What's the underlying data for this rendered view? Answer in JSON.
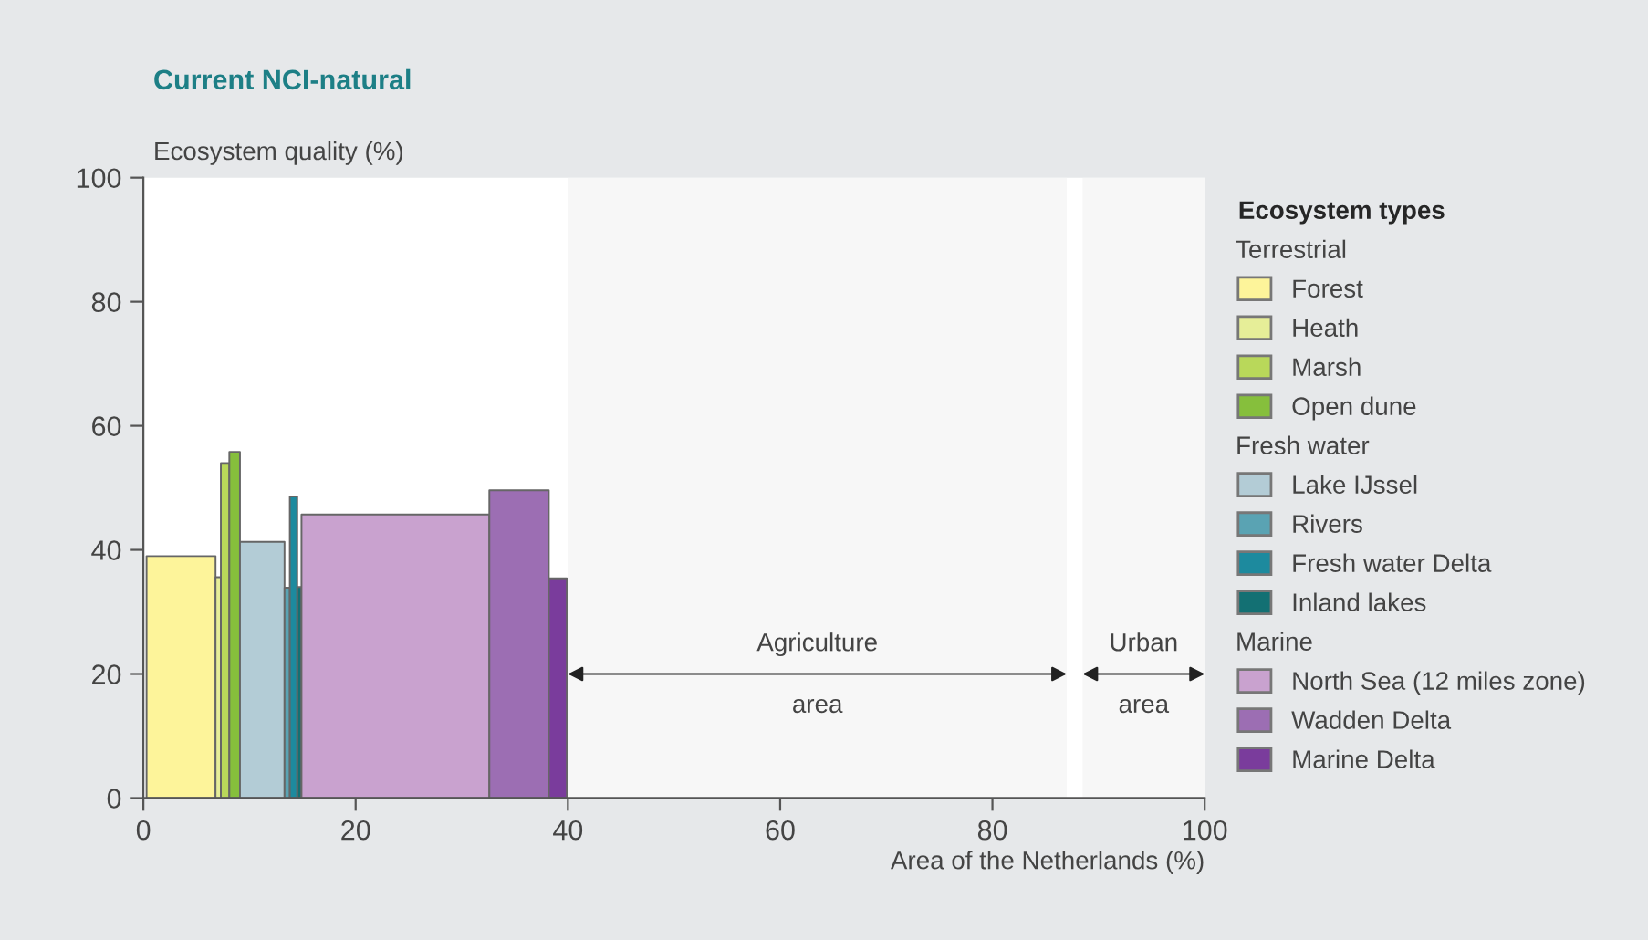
{
  "chart_data": {
    "type": "area",
    "title": "Current NCI-natural",
    "xlabel": "Area of the Netherlands (%)",
    "ylabel": "Ecosystem quality (%)",
    "legend_title": "Ecosystem types",
    "annotations": [
      "Terrestrial",
      "Fresh water",
      "Marine"
    ],
    "xlim": [
      0,
      100
    ],
    "xticks": [
      0,
      20,
      40,
      60,
      80,
      100
    ],
    "ylim": [
      0,
      100
    ],
    "yticks": [
      0,
      20,
      40,
      60,
      80,
      100
    ],
    "grid": false,
    "legend": "right",
    "bands": [
      {
        "axis": "x",
        "from": 40,
        "to": 87,
        "label": "Agriculture area"
      },
      {
        "axis": "x",
        "from": 88.5,
        "to": 100,
        "label": "Urban area"
      }
    ],
    "series": [
      {
        "name": "Forest",
        "color": "#fdf49a",
        "x": [
          0.3,
          6.8
        ],
        "values": [
          39,
          39
        ]
      },
      {
        "name": "Heath",
        "color": "#e6ee98",
        "x": [
          6.8,
          7.3
        ],
        "values": [
          35.6,
          35.6
        ]
      },
      {
        "name": "Marsh",
        "color": "#b9d85a",
        "x": [
          7.3,
          8.1
        ],
        "values": [
          54,
          54
        ]
      },
      {
        "name": "Open dune",
        "color": "#86bf3c",
        "x": [
          8.1,
          9.1
        ],
        "values": [
          55.8,
          55.8
        ]
      },
      {
        "name": "Lake IJssel",
        "color": "#b3ccd6",
        "x": [
          9.1,
          13.3
        ],
        "values": [
          41.3,
          41.3
        ]
      },
      {
        "name": "Rivers",
        "color": "#5aa3b3",
        "x": [
          13.3,
          13.8
        ],
        "values": [
          33.9,
          33.9
        ]
      },
      {
        "name": "Fresh water Delta",
        "color": "#1d8a9e",
        "x": [
          13.8,
          14.5
        ],
        "values": [
          48.6,
          48.6
        ]
      },
      {
        "name": "Inland lakes",
        "color": "#137073",
        "x": [
          14.5,
          14.9
        ],
        "values": [
          34,
          34
        ]
      },
      {
        "name": "North Sea (12 miles zone)",
        "color": "#c9a2cf",
        "x": [
          14.9,
          32.6
        ],
        "values": [
          45.7,
          45.7
        ]
      },
      {
        "name": "Wadden Delta",
        "color": "#9c6eb3",
        "x": [
          32.6,
          38.2
        ],
        "values": [
          49.6,
          49.6
        ]
      },
      {
        "name": "Marine Delta",
        "color": "#7a3c9c",
        "x": [
          38.2,
          39.9
        ],
        "values": [
          35.4,
          35.4
        ]
      }
    ]
  }
}
